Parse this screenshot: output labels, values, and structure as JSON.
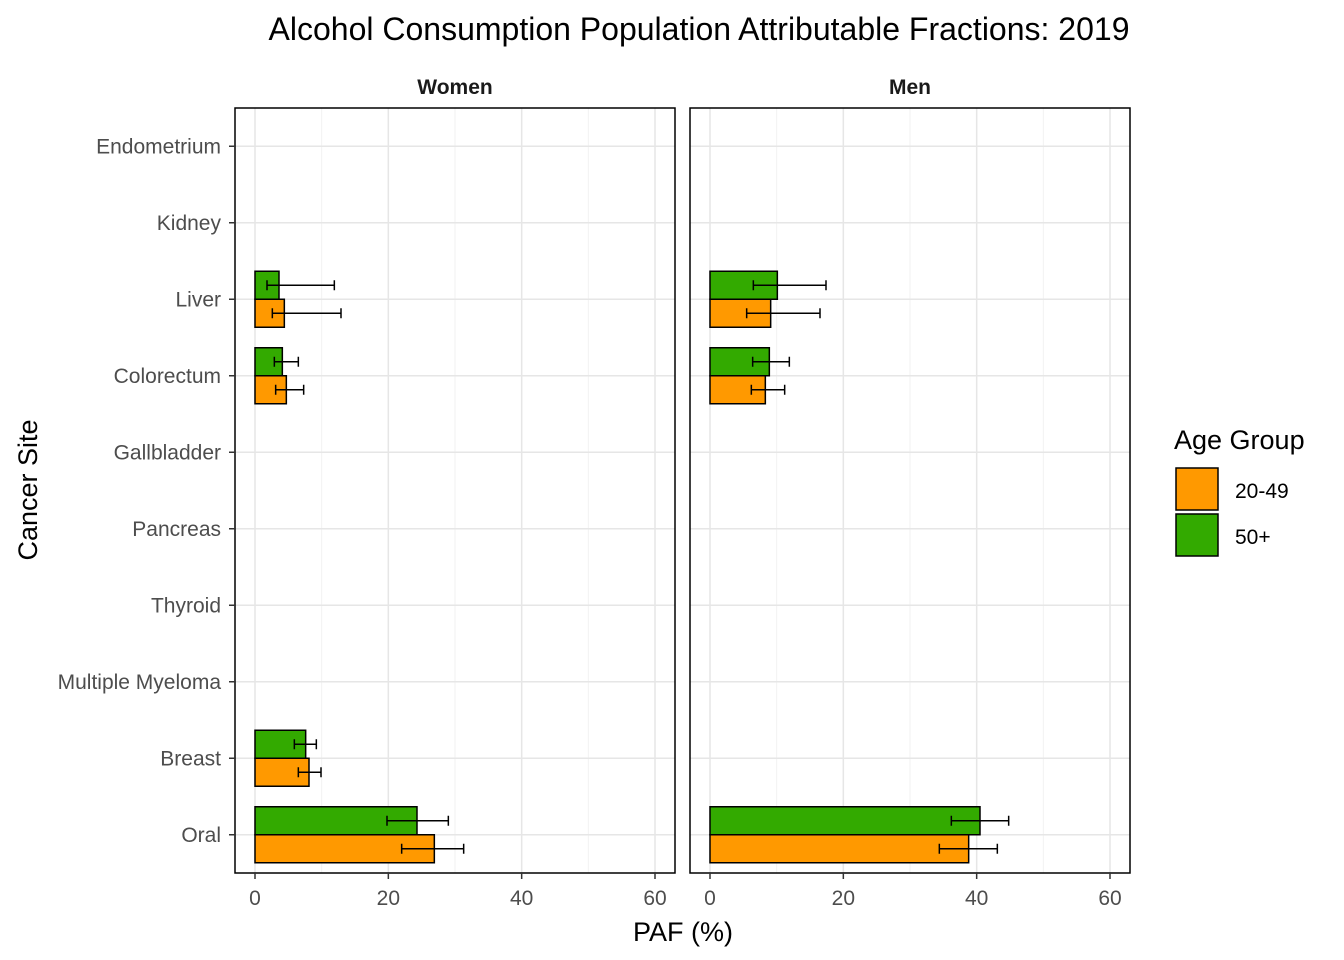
{
  "chart_data": {
    "type": "bar",
    "orientation": "horizontal",
    "title": "Alcohol Consumption  Population Attributable Fractions: 2019",
    "xlabel": "PAF (%)",
    "ylabel": "Cancer Site",
    "xlim": [
      -3,
      63
    ],
    "xticks": [
      0,
      20,
      40,
      60
    ],
    "grid": true,
    "legend_position": "right",
    "legend_title": "Age Group",
    "series_colors": {
      "20-49": "#FF9900",
      "50+": "#33AA00"
    },
    "categories": [
      "Endometrium",
      "Kidney",
      "Liver",
      "Colorectum",
      "Gallbladder",
      "Pancreas",
      "Thyroid",
      "Multiple Myeloma",
      "Breast",
      "Oral"
    ],
    "panels": [
      {
        "label": "Women",
        "series": [
          {
            "name": "20-49",
            "values": [
              0,
              0,
              4.4,
              4.7,
              0,
              0,
              0,
              0,
              8.1,
              26.9
            ],
            "error_low": [
              null,
              null,
              2.6,
              3.1,
              null,
              null,
              null,
              null,
              6.5,
              22.0
            ],
            "error_high": [
              null,
              null,
              12.9,
              7.3,
              null,
              null,
              null,
              null,
              9.9,
              31.3
            ]
          },
          {
            "name": "50+",
            "values": [
              0,
              0,
              3.6,
              4.1,
              0,
              0,
              0,
              0,
              7.6,
              24.3
            ],
            "error_low": [
              null,
              null,
              1.8,
              2.9,
              null,
              null,
              null,
              null,
              5.9,
              19.8
            ],
            "error_high": [
              null,
              null,
              11.9,
              6.5,
              null,
              null,
              null,
              null,
              9.2,
              29.0
            ]
          }
        ]
      },
      {
        "label": "Men",
        "series": [
          {
            "name": "20-49",
            "values": [
              0,
              0,
              9.1,
              8.3,
              0,
              0,
              0,
              0,
              0,
              38.8
            ],
            "error_low": [
              null,
              null,
              5.5,
              6.2,
              null,
              null,
              null,
              null,
              null,
              34.4
            ],
            "error_high": [
              null,
              null,
              16.5,
              11.2,
              null,
              null,
              null,
              null,
              null,
              43.1
            ]
          },
          {
            "name": "50+",
            "values": [
              0,
              0,
              10.1,
              8.9,
              0,
              0,
              0,
              0,
              0,
              40.5
            ],
            "error_low": [
              null,
              null,
              6.5,
              6.4,
              null,
              null,
              null,
              null,
              null,
              36.2
            ],
            "error_high": [
              null,
              null,
              17.4,
              11.9,
              null,
              null,
              null,
              null,
              null,
              44.8
            ]
          }
        ]
      }
    ]
  }
}
